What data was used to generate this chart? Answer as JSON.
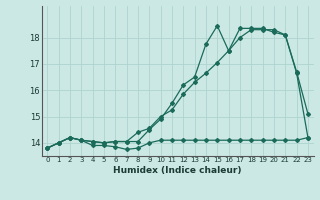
{
  "xlabel": "Humidex (Indice chaleur)",
  "bg_color": "#cce8e5",
  "line_color": "#1a6b5a",
  "grid_color": "#aed4d0",
  "xlim": [
    -0.5,
    23.5
  ],
  "ylim": [
    13.5,
    19.2
  ],
  "yticks": [
    14,
    15,
    16,
    17,
    18
  ],
  "xticks": [
    0,
    1,
    2,
    3,
    4,
    5,
    6,
    7,
    8,
    9,
    10,
    11,
    12,
    13,
    14,
    15,
    16,
    17,
    18,
    19,
    20,
    21,
    22,
    23
  ],
  "series1": [
    13.8,
    14.0,
    14.2,
    14.1,
    13.9,
    13.9,
    13.85,
    13.75,
    13.8,
    14.0,
    14.1,
    14.1,
    14.1,
    14.1,
    14.1,
    14.1,
    14.1,
    14.1,
    14.1,
    14.1,
    14.1,
    14.1,
    14.1,
    14.2
  ],
  "series2": [
    13.8,
    14.0,
    14.2,
    14.1,
    14.05,
    14.0,
    14.05,
    14.05,
    14.05,
    14.5,
    14.9,
    15.5,
    16.2,
    16.5,
    17.75,
    18.45,
    17.5,
    18.35,
    18.35,
    18.35,
    18.2,
    18.1,
    16.7,
    15.1
  ],
  "series3": [
    13.8,
    14.0,
    14.2,
    14.1,
    14.05,
    14.0,
    14.05,
    14.05,
    14.4,
    14.55,
    15.0,
    15.25,
    15.85,
    16.3,
    16.65,
    17.05,
    17.5,
    18.0,
    18.3,
    18.3,
    18.3,
    18.1,
    16.65,
    14.2
  ]
}
